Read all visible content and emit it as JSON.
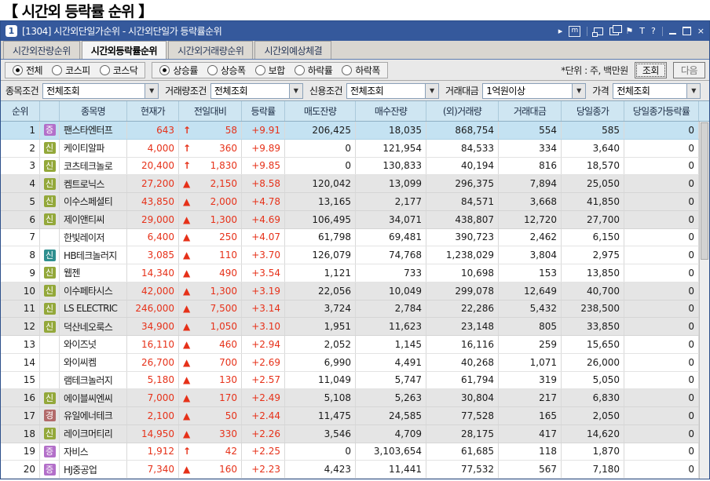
{
  "page": {
    "title": "【 시간외 등락률 순위 】"
  },
  "window": {
    "id_badge": "1",
    "title": "[1304] 시간외단일가순위 - 시간외단일가 등락률순위",
    "titlebar": {
      "expand": "▸",
      "memo": "m",
      "font": "T",
      "help": "?",
      "close": "×"
    }
  },
  "tabs": [
    {
      "label": "시간외잔량순위",
      "active": false
    },
    {
      "label": "시간외등락률순위",
      "active": true
    },
    {
      "label": "시간외거래량순위",
      "active": false
    },
    {
      "label": "시간외예상체결",
      "active": false
    }
  ],
  "market_radios": [
    {
      "label": "전체",
      "selected": true
    },
    {
      "label": "코스피",
      "selected": false
    },
    {
      "label": "코스닥",
      "selected": false
    }
  ],
  "sort_radios": [
    {
      "label": "상승률",
      "selected": true
    },
    {
      "label": "상승폭",
      "selected": false
    },
    {
      "label": "보합",
      "selected": false
    },
    {
      "label": "하락률",
      "selected": false
    },
    {
      "label": "하락폭",
      "selected": false
    }
  ],
  "unit_note": "*단위 : 주, 백만원",
  "buttons": {
    "query": "조회",
    "next": "다음"
  },
  "filters": [
    {
      "label": "종목조건",
      "value": "전체조회"
    },
    {
      "label": "거래량조건",
      "value": "전체조회"
    },
    {
      "label": "신용조건",
      "value": "전체조회"
    },
    {
      "label": "거래대금",
      "value": "1억원이상"
    },
    {
      "label": "가격",
      "value": "전체조회"
    }
  ],
  "table": {
    "headers": [
      "순위",
      "",
      "종목명",
      "현재가",
      "전일대비",
      "등락률",
      "매도잔량",
      "매수잔량",
      "(외)거래량",
      "거래대금",
      "당일종가",
      "당일종가등락률"
    ],
    "rows": [
      {
        "rank": "1",
        "badge": {
          "text": "증",
          "color": "#b36fc9"
        },
        "name": "팬스타엔터프",
        "price": "643",
        "arrow": "↑",
        "change": "58",
        "rate": "+9.91",
        "ask": "206,425",
        "bid": "18,035",
        "vol": "868,754",
        "amount": "554",
        "close": "585",
        "close_rate": "0",
        "style": "sel"
      },
      {
        "rank": "2",
        "badge": {
          "text": "신",
          "color": "#93a83a"
        },
        "name": "케이티알파",
        "price": "4,000",
        "arrow": "↑",
        "change": "360",
        "rate": "+9.89",
        "ask": "0",
        "bid": "121,954",
        "vol": "84,533",
        "amount": "334",
        "close": "3,640",
        "close_rate": "0",
        "style": ""
      },
      {
        "rank": "3",
        "badge": {
          "text": "신",
          "color": "#93a83a"
        },
        "name": "코츠테크놀로",
        "price": "20,400",
        "arrow": "↑",
        "change": "1,830",
        "rate": "+9.85",
        "ask": "0",
        "bid": "130,833",
        "vol": "40,194",
        "amount": "816",
        "close": "18,570",
        "close_rate": "0",
        "style": ""
      },
      {
        "rank": "4",
        "badge": {
          "text": "신",
          "color": "#93a83a"
        },
        "name": "켐트로닉스",
        "price": "27,200",
        "arrow": "▲",
        "change": "2,150",
        "rate": "+8.58",
        "ask": "120,042",
        "bid": "13,099",
        "vol": "296,375",
        "amount": "7,894",
        "close": "25,050",
        "close_rate": "0",
        "style": "alt"
      },
      {
        "rank": "5",
        "badge": {
          "text": "신",
          "color": "#93a83a"
        },
        "name": "이수스페셜티",
        "price": "43,850",
        "arrow": "▲",
        "change": "2,000",
        "rate": "+4.78",
        "ask": "13,165",
        "bid": "2,177",
        "vol": "84,571",
        "amount": "3,668",
        "close": "41,850",
        "close_rate": "0",
        "style": "alt"
      },
      {
        "rank": "6",
        "badge": {
          "text": "신",
          "color": "#93a83a"
        },
        "name": "제이앤티씨",
        "price": "29,000",
        "arrow": "▲",
        "change": "1,300",
        "rate": "+4.69",
        "ask": "106,495",
        "bid": "34,071",
        "vol": "438,807",
        "amount": "12,720",
        "close": "27,700",
        "close_rate": "0",
        "style": "alt"
      },
      {
        "rank": "7",
        "badge": null,
        "name": "한빛레이저",
        "price": "6,400",
        "arrow": "▲",
        "change": "250",
        "rate": "+4.07",
        "ask": "61,798",
        "bid": "69,481",
        "vol": "390,723",
        "amount": "2,462",
        "close": "6,150",
        "close_rate": "0",
        "style": ""
      },
      {
        "rank": "8",
        "badge": {
          "text": "신",
          "color": "#2f8f8f"
        },
        "name": "HB테크놀러지",
        "price": "3,085",
        "arrow": "▲",
        "change": "110",
        "rate": "+3.70",
        "ask": "126,079",
        "bid": "74,768",
        "vol": "1,238,029",
        "amount": "3,804",
        "close": "2,975",
        "close_rate": "0",
        "style": ""
      },
      {
        "rank": "9",
        "badge": {
          "text": "신",
          "color": "#93a83a"
        },
        "name": "웹젠",
        "price": "14,340",
        "arrow": "▲",
        "change": "490",
        "rate": "+3.54",
        "ask": "1,121",
        "bid": "733",
        "vol": "10,698",
        "amount": "153",
        "close": "13,850",
        "close_rate": "0",
        "style": ""
      },
      {
        "rank": "10",
        "badge": {
          "text": "신",
          "color": "#93a83a"
        },
        "name": "이수페타시스",
        "price": "42,000",
        "arrow": "▲",
        "change": "1,300",
        "rate": "+3.19",
        "ask": "22,056",
        "bid": "10,049",
        "vol": "299,078",
        "amount": "12,649",
        "close": "40,700",
        "close_rate": "0",
        "style": "alt"
      },
      {
        "rank": "11",
        "badge": {
          "text": "신",
          "color": "#93a83a"
        },
        "name": "LS ELECTRIC",
        "price": "246,000",
        "arrow": "▲",
        "change": "7,500",
        "rate": "+3.14",
        "ask": "3,724",
        "bid": "2,784",
        "vol": "22,286",
        "amount": "5,432",
        "close": "238,500",
        "close_rate": "0",
        "style": "alt"
      },
      {
        "rank": "12",
        "badge": {
          "text": "신",
          "color": "#93a83a"
        },
        "name": "덕산네오룩스",
        "price": "34,900",
        "arrow": "▲",
        "change": "1,050",
        "rate": "+3.10",
        "ask": "1,951",
        "bid": "11,623",
        "vol": "23,148",
        "amount": "805",
        "close": "33,850",
        "close_rate": "0",
        "style": "alt"
      },
      {
        "rank": "13",
        "badge": null,
        "name": "와이즈넛",
        "price": "16,110",
        "arrow": "▲",
        "change": "460",
        "rate": "+2.94",
        "ask": "2,052",
        "bid": "1,145",
        "vol": "16,116",
        "amount": "259",
        "close": "15,650",
        "close_rate": "0",
        "style": ""
      },
      {
        "rank": "14",
        "badge": null,
        "name": "와이씨켐",
        "price": "26,700",
        "arrow": "▲",
        "change": "700",
        "rate": "+2.69",
        "ask": "6,990",
        "bid": "4,491",
        "vol": "40,268",
        "amount": "1,071",
        "close": "26,000",
        "close_rate": "0",
        "style": ""
      },
      {
        "rank": "15",
        "badge": null,
        "name": "램테크놀러지",
        "price": "5,180",
        "arrow": "▲",
        "change": "130",
        "rate": "+2.57",
        "ask": "11,049",
        "bid": "5,747",
        "vol": "61,794",
        "amount": "319",
        "close": "5,050",
        "close_rate": "0",
        "style": ""
      },
      {
        "rank": "16",
        "badge": {
          "text": "신",
          "color": "#93a83a"
        },
        "name": "에이블씨엔씨",
        "price": "7,000",
        "arrow": "▲",
        "change": "170",
        "rate": "+2.49",
        "ask": "5,108",
        "bid": "5,263",
        "vol": "30,804",
        "amount": "217",
        "close": "6,830",
        "close_rate": "0",
        "style": "alt"
      },
      {
        "rank": "17",
        "badge": {
          "text": "경",
          "color": "#b26a6a"
        },
        "name": "유일에너테크",
        "price": "2,100",
        "arrow": "▲",
        "change": "50",
        "rate": "+2.44",
        "ask": "11,475",
        "bid": "24,585",
        "vol": "77,528",
        "amount": "165",
        "close": "2,050",
        "close_rate": "0",
        "style": "alt"
      },
      {
        "rank": "18",
        "badge": {
          "text": "신",
          "color": "#93a83a"
        },
        "name": "레이크머티리",
        "price": "14,950",
        "arrow": "▲",
        "change": "330",
        "rate": "+2.26",
        "ask": "3,546",
        "bid": "4,709",
        "vol": "28,175",
        "amount": "417",
        "close": "14,620",
        "close_rate": "0",
        "style": "alt"
      },
      {
        "rank": "19",
        "badge": {
          "text": "증",
          "color": "#b36fc9"
        },
        "name": "자비스",
        "price": "1,912",
        "arrow": "↑",
        "change": "42",
        "rate": "+2.25",
        "ask": "0",
        "bid": "3,103,654",
        "vol": "61,685",
        "amount": "118",
        "close": "1,870",
        "close_rate": "0",
        "style": ""
      },
      {
        "rank": "20",
        "badge": {
          "text": "증",
          "color": "#b36fc9"
        },
        "name": "HJ중공업",
        "price": "7,340",
        "arrow": "▲",
        "change": "160",
        "rate": "+2.23",
        "ask": "4,423",
        "bid": "11,441",
        "vol": "77,532",
        "amount": "567",
        "close": "7,180",
        "close_rate": "0",
        "style": ""
      }
    ]
  }
}
